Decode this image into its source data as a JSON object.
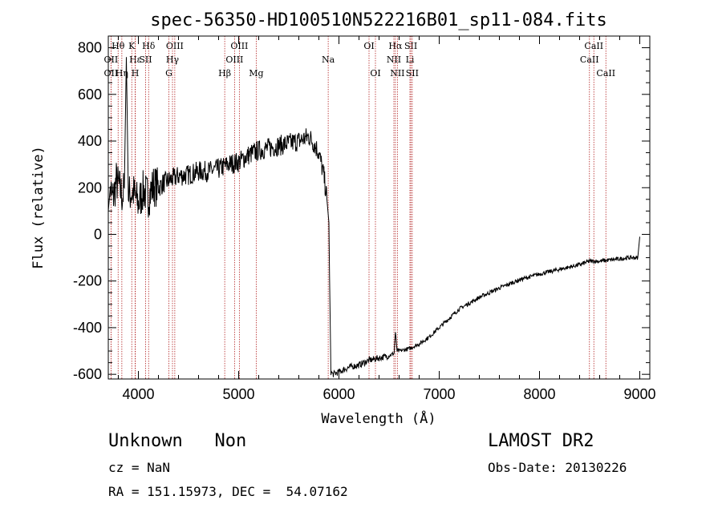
{
  "chart_data": {
    "type": "line",
    "title": "spec-56350-HD100510N522216B01_sp11-084.fits",
    "xlabel": "Wavelength (Å)",
    "ylabel": "Flux (relative)",
    "xlim": [
      3700,
      9100
    ],
    "ylim": [
      -620,
      850
    ],
    "xticks": [
      4000,
      5000,
      6000,
      7000,
      8000,
      9000
    ],
    "yticks": [
      -600,
      -400,
      -200,
      0,
      200,
      400,
      600,
      800
    ],
    "grid": false,
    "series": [
      {
        "x": [
          3700,
          3720,
          3740,
          3760,
          3780,
          3800,
          3820,
          3840,
          3860,
          3880,
          3900,
          3950,
          4000,
          4050,
          4100,
          4150,
          4200,
          4250,
          4300,
          4350,
          4400,
          4500,
          4600,
          4700,
          4800,
          4900,
          5000,
          5100,
          5200,
          5300,
          5400,
          5500,
          5600,
          5700,
          5750,
          5800,
          5850,
          5880,
          5900,
          5910,
          5920,
          5940,
          6000,
          6100,
          6200,
          6300,
          6400,
          6500,
          6550,
          6563,
          6580,
          6600,
          6700,
          6800,
          6900,
          7000,
          7100,
          7200,
          7400,
          7600,
          7800,
          8000,
          8200,
          8400,
          8500,
          8600,
          8700,
          8800,
          8900,
          8980,
          9000
        ],
        "y": [
          100,
          200,
          150,
          180,
          230,
          210,
          190,
          160,
          200,
          760,
          170,
          180,
          130,
          190,
          160,
          210,
          200,
          220,
          230,
          240,
          250,
          255,
          270,
          270,
          280,
          300,
          310,
          340,
          360,
          370,
          380,
          390,
          400,
          420,
          390,
          350,
          250,
          150,
          50,
          -300,
          -590,
          -600,
          -590,
          -570,
          -560,
          -540,
          -530,
          -520,
          -510,
          -420,
          -500,
          -500,
          -490,
          -470,
          -440,
          -400,
          -360,
          -320,
          -270,
          -230,
          -195,
          -170,
          -150,
          -130,
          -115,
          -115,
          -110,
          -105,
          -100,
          -100,
          -10
        ]
      }
    ],
    "spectral_lines": [
      {
        "label": "Hθ",
        "wavelength": 3798,
        "row": 1
      },
      {
        "label": "OII",
        "wavelength": 3727,
        "row": 2
      },
      {
        "label": "OII",
        "wavelength": 3727,
        "row": 3
      },
      {
        "label": "Hη",
        "wavelength": 3835,
        "row": 3
      },
      {
        "label": "K",
        "wavelength": 3934,
        "row": 1
      },
      {
        "label": "Hε",
        "wavelength": 3970,
        "row": 2
      },
      {
        "label": "H",
        "wavelength": 3968,
        "row": 3
      },
      {
        "label": "Hδ",
        "wavelength": 4102,
        "row": 1
      },
      {
        "label": "SII",
        "wavelength": 4072,
        "row": 2
      },
      {
        "label": "OIII",
        "wavelength": 4363,
        "row": 1
      },
      {
        "label": "Hγ",
        "wavelength": 4340,
        "row": 2
      },
      {
        "label": "G",
        "wavelength": 4304,
        "row": 3
      },
      {
        "label": "OIII",
        "wavelength": 5007,
        "row": 1
      },
      {
        "label": "OIII",
        "wavelength": 4959,
        "row": 2
      },
      {
        "label": "Hβ",
        "wavelength": 4861,
        "row": 3
      },
      {
        "label": "Mg",
        "wavelength": 5175,
        "row": 3
      },
      {
        "label": "Na",
        "wavelength": 5893,
        "row": 2
      },
      {
        "label": "OI",
        "wavelength": 6300,
        "row": 1
      },
      {
        "label": "OI",
        "wavelength": 6364,
        "row": 3
      },
      {
        "label": "Hα",
        "wavelength": 6563,
        "row": 1
      },
      {
        "label": "SII",
        "wavelength": 6717,
        "row": 1
      },
      {
        "label": "NII",
        "wavelength": 6548,
        "row": 2
      },
      {
        "label": "Li",
        "wavelength": 6708,
        "row": 2
      },
      {
        "label": "NII",
        "wavelength": 6583,
        "row": 3
      },
      {
        "label": "SII",
        "wavelength": 6731,
        "row": 3
      },
      {
        "label": "CaII",
        "wavelength": 8542,
        "row": 1
      },
      {
        "label": "CaII",
        "wavelength": 8498,
        "row": 2
      },
      {
        "label": "CaII",
        "wavelength": 8662,
        "row": 3
      }
    ]
  },
  "info": {
    "classification": "Unknown   Non",
    "cz": "cz = NaN",
    "coords": "RA = 151.15973, DEC =  54.07162",
    "survey": "LAMOST DR2",
    "obs_date": "Obs-Date: 20130226"
  }
}
